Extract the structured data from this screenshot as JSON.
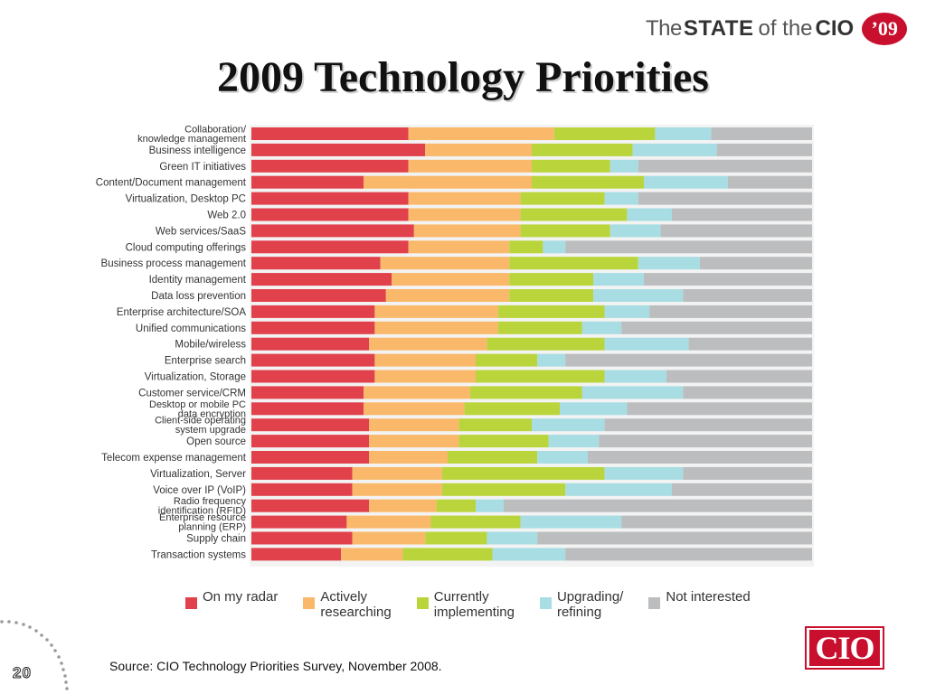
{
  "header": {
    "brand_the": "The",
    "brand_state": "STATE",
    "brand_of": "of the",
    "brand_cio": "CIO",
    "brand_year": "’09"
  },
  "page_title": "2009 Technology Priorities",
  "colors": {
    "on_my_radar": "#e0414b",
    "actively_researching": "#f9b86a",
    "currently_implementing": "#b9d53b",
    "upgrading_refining": "#a7dde3",
    "not_interested": "#bcbdbf",
    "brand_red": "#c8102e"
  },
  "legend": [
    {
      "label": "On my radar",
      "color": "#e0414b"
    },
    {
      "label": "Actively\nresearching",
      "color": "#f9b86a"
    },
    {
      "label": "Currently\nimplementing",
      "color": "#b9d53b"
    },
    {
      "label": "Upgrading/\nrefining",
      "color": "#a7dde3"
    },
    {
      "label": "Not interested",
      "color": "#bcbdbf"
    }
  ],
  "chart_data": {
    "type": "bar",
    "orientation": "horizontal",
    "stacked": true,
    "normalized": true,
    "xlim": [
      0,
      100
    ],
    "categories": [
      "Collaboration/\nknowledge management",
      "Business intelligence",
      "Green IT initiatives",
      "Content/Document management",
      "Virtualization, Desktop PC",
      "Web 2.0",
      "Web services/SaaS",
      "Cloud computing offerings",
      "Business process management",
      "Identity management",
      "Data loss prevention",
      "Enterprise architecture/SOA",
      "Unified communications",
      "Mobile/wireless",
      "Enterprise search",
      "Virtualization, Storage",
      "Customer service/CRM",
      "Desktop or mobile PC\ndata encryption",
      "Client-side operating\nsystem upgrade",
      "Open source",
      "Telecom expense management",
      "Virtualization, Server",
      "Voice over IP (VoIP)",
      "Radio frequency\nidentification (RFID)",
      "Enterprise resource\nplanning (ERP)",
      "Supply chain",
      "Transaction systems"
    ],
    "series": [
      {
        "name": "On my radar",
        "values": [
          28,
          31,
          28,
          20,
          28,
          28,
          29,
          28,
          23,
          25,
          24,
          22,
          22,
          21,
          22,
          22,
          20,
          20,
          21,
          21,
          21,
          18,
          18,
          21,
          17,
          18,
          16
        ]
      },
      {
        "name": "Actively researching",
        "values": [
          26,
          19,
          22,
          30,
          20,
          20,
          19,
          18,
          23,
          21,
          22,
          22,
          22,
          21,
          18,
          18,
          19,
          18,
          16,
          16,
          14,
          16,
          16,
          12,
          15,
          13,
          11
        ]
      },
      {
        "name": "Currently implementing",
        "values": [
          18,
          18,
          14,
          20,
          15,
          19,
          16,
          6,
          23,
          15,
          15,
          19,
          15,
          21,
          11,
          23,
          20,
          17,
          13,
          16,
          16,
          29,
          22,
          7,
          16,
          11,
          16
        ]
      },
      {
        "name": "Upgrading/refining",
        "values": [
          10,
          15,
          5,
          15,
          6,
          8,
          9,
          4,
          11,
          9,
          16,
          8,
          7,
          15,
          5,
          11,
          18,
          12,
          13,
          9,
          9,
          14,
          19,
          5,
          18,
          9,
          13
        ]
      },
      {
        "name": "Not interested",
        "values": [
          18,
          17,
          31,
          15,
          31,
          25,
          27,
          44,
          20,
          30,
          23,
          29,
          34,
          22,
          44,
          26,
          23,
          33,
          37,
          38,
          40,
          23,
          25,
          55,
          34,
          49,
          44
        ]
      }
    ]
  },
  "footer": {
    "source": "Source: CIO Technology Priorities Survey, November 2008.",
    "logo_text": "CIO",
    "page_number": "20"
  }
}
